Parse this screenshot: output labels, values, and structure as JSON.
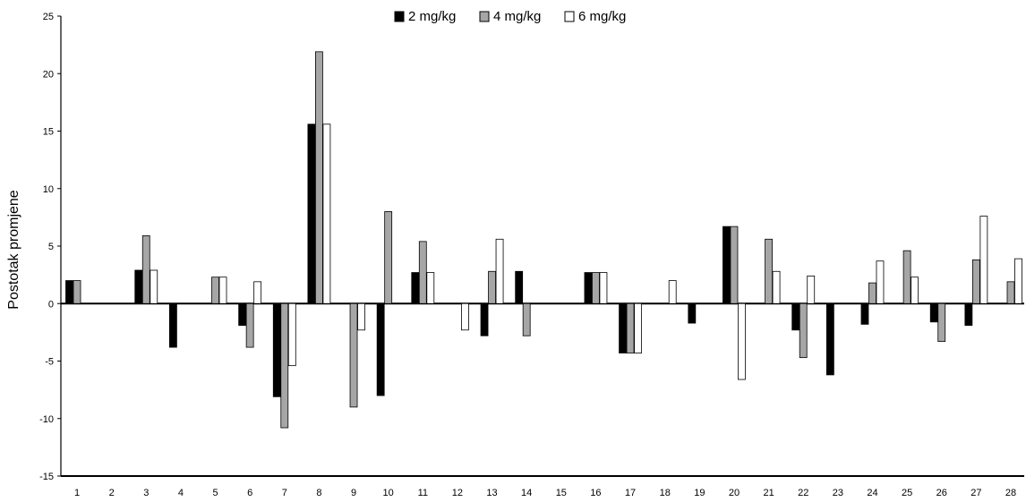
{
  "chart_data": {
    "type": "bar",
    "title": "",
    "xlabel": "",
    "ylabel": "Postotak promjene",
    "ylim": [
      -15,
      25
    ],
    "yticks": [
      -15,
      -10,
      -5,
      0,
      5,
      10,
      15,
      20,
      25
    ],
    "grid": false,
    "legend_position": "top-center",
    "categories": [
      "1",
      "2",
      "3",
      "4",
      "5",
      "6",
      "7",
      "8",
      "9",
      "10",
      "11",
      "12",
      "13",
      "14",
      "15",
      "16",
      "17",
      "18",
      "19",
      "20",
      "21",
      "22",
      "23",
      "24",
      "25",
      "26",
      "27",
      "28"
    ],
    "series": [
      {
        "name": "2 mg/kg",
        "color": "#000000",
        "values": [
          2.0,
          0,
          2.9,
          -3.8,
          0,
          -1.9,
          -8.1,
          15.6,
          0,
          -8.0,
          2.7,
          0,
          -2.8,
          2.8,
          0,
          2.7,
          -4.3,
          0,
          -1.7,
          6.7,
          0,
          -2.3,
          -6.2,
          -1.8,
          0,
          -1.6,
          -1.9,
          0
        ]
      },
      {
        "name": "4 mg/kg",
        "color": "#a6a6a6",
        "values": [
          2.0,
          0,
          5.9,
          0,
          2.3,
          -3.8,
          -10.8,
          21.9,
          -9.0,
          8.0,
          5.4,
          0,
          2.8,
          -2.8,
          0,
          2.7,
          -4.3,
          0,
          0,
          6.7,
          5.6,
          -4.7,
          0,
          1.8,
          4.6,
          -3.3,
          3.8,
          1.9
        ]
      },
      {
        "name": "6 mg/kg",
        "color": "#ffffff",
        "values": [
          0,
          0,
          2.9,
          0,
          2.3,
          1.9,
          -5.4,
          15.6,
          -2.3,
          0,
          2.7,
          -2.3,
          5.6,
          0,
          0,
          2.7,
          -4.3,
          2.0,
          0,
          -6.6,
          2.8,
          2.4,
          0,
          3.7,
          2.3,
          0,
          7.6,
          3.9
        ]
      }
    ]
  }
}
